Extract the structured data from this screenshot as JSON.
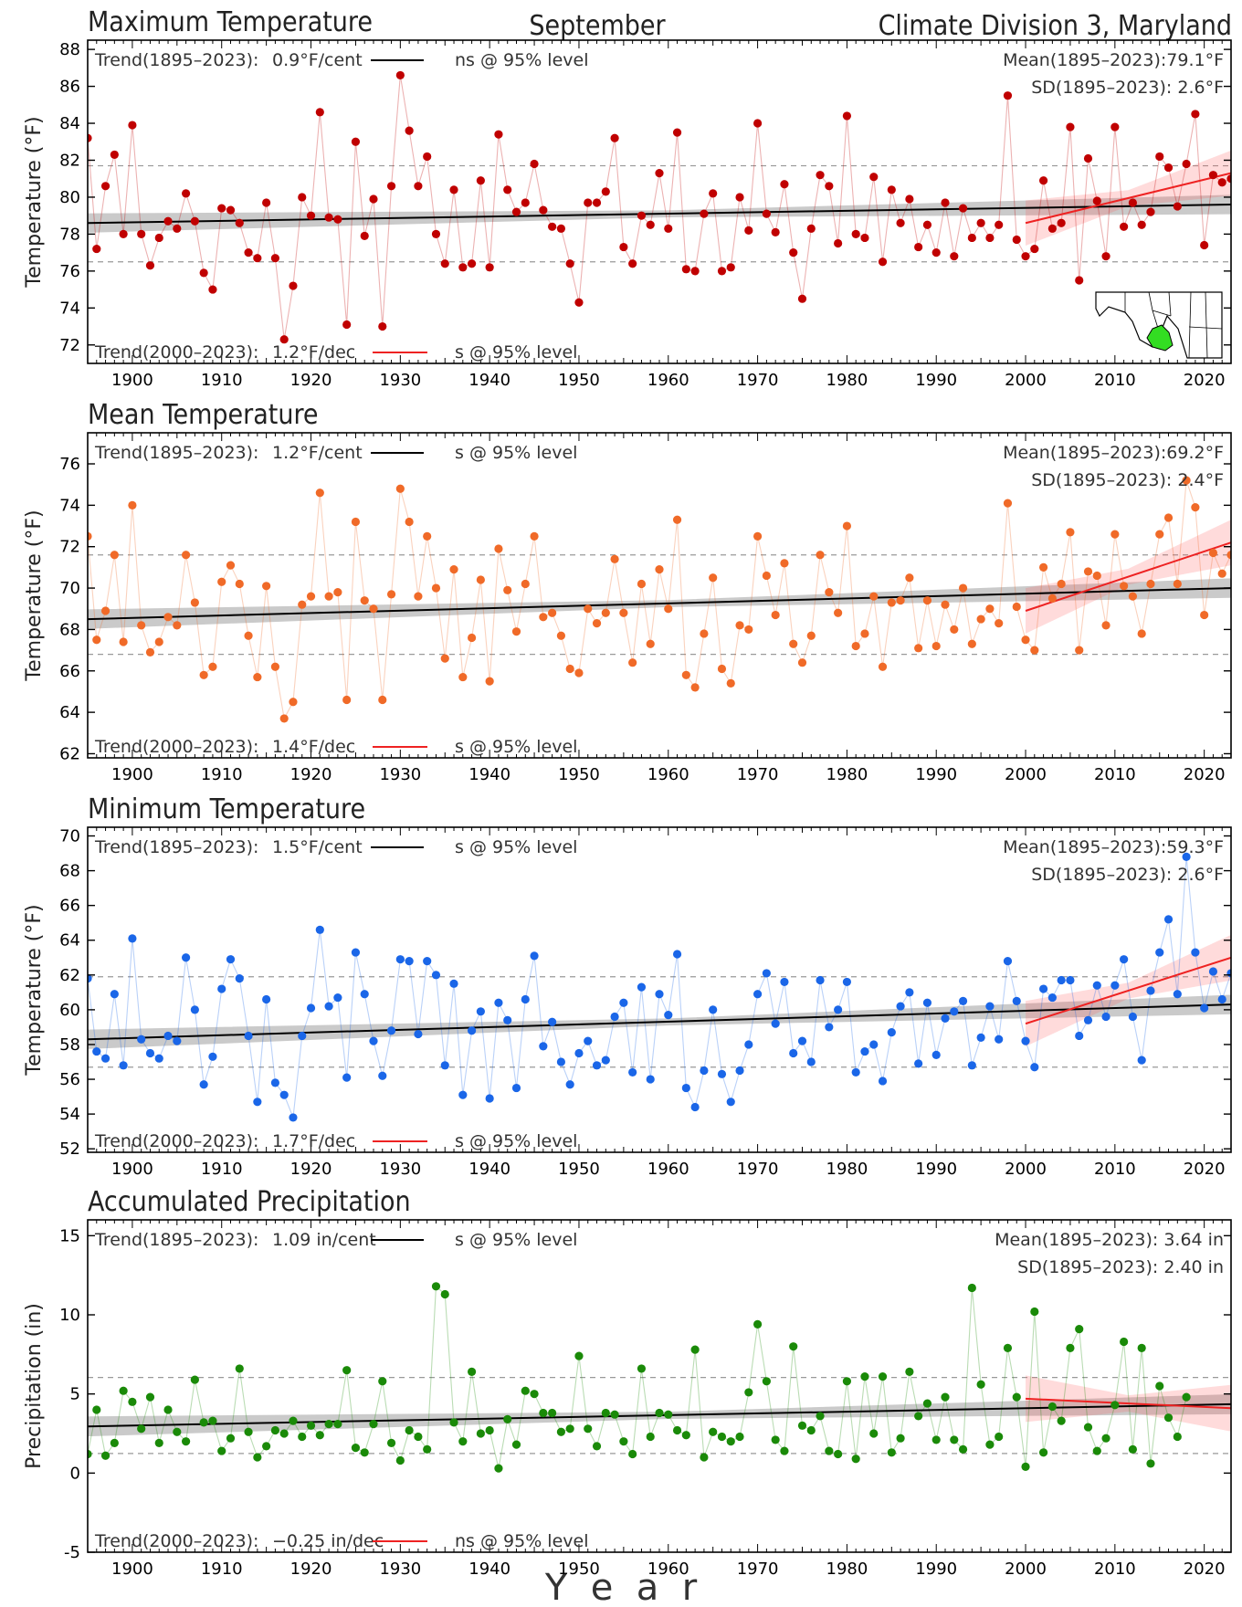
{
  "header": {
    "month": "September",
    "region": "Climate Division 3, Maryland"
  },
  "x_axis_label": "Y  e  a  r",
  "chart_data": [
    {
      "type": "scatter",
      "title": "Maximum Temperature",
      "ylabel": "Temperature (°F)",
      "color": "#c00000",
      "xlim": [
        1895,
        2023
      ],
      "ylim": [
        71,
        88.5
      ],
      "yticks": [
        72,
        74,
        76,
        78,
        80,
        82,
        84,
        86,
        88
      ],
      "xticks": [
        1900,
        1910,
        1920,
        1930,
        1940,
        1950,
        1960,
        1970,
        1980,
        1990,
        2000,
        2010,
        2020
      ],
      "trend_long": {
        "label": "Trend(1895–2023):",
        "value": "0.9°F/cent",
        "sig": "ns @ 95% level",
        "start": 78.6,
        "end": 79.6
      },
      "trend_recent": {
        "label": "Trend(2000–2023):",
        "value": "1.2°F/dec",
        "sig": "s @ 95% level",
        "start": 78.6,
        "end": 81.3
      },
      "mean_text": "Mean(1895–2023):79.1°F",
      "sd_text": "SD(1895–2023): 2.6°F",
      "mean": 79.1,
      "sd": 2.6,
      "x0": 1895,
      "values": [
        83.2,
        77.2,
        80.6,
        82.3,
        78.0,
        83.9,
        78.0,
        76.3,
        77.8,
        78.7,
        78.3,
        80.2,
        78.7,
        75.9,
        75.0,
        79.4,
        79.3,
        78.6,
        77.0,
        76.7,
        79.7,
        76.7,
        72.3,
        75.2,
        80.0,
        79.0,
        84.6,
        78.9,
        78.8,
        73.1,
        83.0,
        77.9,
        79.9,
        73.0,
        80.6,
        86.6,
        83.6,
        80.6,
        82.2,
        78.0,
        76.4,
        80.4,
        76.2,
        76.4,
        80.9,
        76.2,
        83.4,
        80.4,
        79.2,
        79.7,
        81.8,
        79.3,
        78.4,
        78.3,
        76.4,
        74.3,
        79.7,
        79.7,
        80.3,
        83.2,
        77.3,
        76.4,
        79.0,
        78.5,
        81.3,
        78.3,
        83.5,
        76.1,
        76.0,
        79.1,
        80.2,
        76.0,
        76.2,
        80.0,
        78.2,
        84.0,
        79.1,
        78.1,
        80.7,
        77.0,
        74.5,
        78.3,
        81.2,
        80.6,
        77.5,
        84.4,
        78.0,
        77.8,
        81.1,
        76.5,
        80.4,
        78.6,
        79.9,
        77.3,
        78.5,
        77.0,
        79.7,
        76.8,
        79.4,
        77.8,
        78.6,
        77.8,
        78.5,
        85.5,
        77.7,
        76.8,
        77.2,
        80.9,
        78.3,
        78.6,
        83.8,
        75.5,
        82.1,
        79.8,
        76.8,
        83.8,
        78.4,
        79.7,
        78.5,
        79.2,
        82.2,
        81.6,
        79.5,
        81.8,
        84.5,
        77.4,
        81.2,
        80.8,
        81.0
      ]
    },
    {
      "type": "scatter",
      "title": "Mean Temperature",
      "ylabel": "Temperature (°F)",
      "color": "#f06a28",
      "xlim": [
        1895,
        2023
      ],
      "ylim": [
        61.8,
        77.5
      ],
      "yticks": [
        62,
        64,
        66,
        68,
        70,
        72,
        74,
        76
      ],
      "xticks": [
        1900,
        1910,
        1920,
        1930,
        1940,
        1950,
        1960,
        1970,
        1980,
        1990,
        2000,
        2010,
        2020
      ],
      "trend_long": {
        "label": "Trend(1895–2023):",
        "value": "1.2°F/cent",
        "sig": "s @ 95% level",
        "start": 68.5,
        "end": 70.0
      },
      "trend_recent": {
        "label": "Trend(2000–2023):",
        "value": "1.4°F/dec",
        "sig": "s @ 95% level",
        "start": 68.9,
        "end": 72.2
      },
      "mean_text": "Mean(1895–2023):69.2°F",
      "sd_text": "SD(1895–2023): 2.4°F",
      "mean": 69.2,
      "sd": 2.4,
      "x0": 1895,
      "values": [
        72.5,
        67.5,
        68.9,
        71.6,
        67.4,
        74.0,
        68.2,
        66.9,
        67.4,
        68.6,
        68.2,
        71.6,
        69.3,
        65.8,
        66.2,
        70.3,
        71.1,
        70.2,
        67.7,
        65.7,
        70.1,
        66.2,
        63.7,
        64.5,
        69.2,
        69.6,
        74.6,
        69.6,
        69.8,
        64.6,
        73.2,
        69.4,
        69.0,
        64.6,
        69.7,
        74.8,
        73.2,
        69.6,
        72.5,
        70.0,
        66.6,
        70.9,
        65.7,
        67.6,
        70.4,
        65.5,
        71.9,
        69.9,
        67.9,
        70.2,
        72.5,
        68.6,
        68.8,
        67.7,
        66.1,
        65.9,
        69.0,
        68.3,
        68.8,
        71.4,
        68.8,
        66.4,
        70.2,
        67.3,
        70.9,
        69.0,
        73.3,
        65.8,
        65.2,
        67.8,
        70.5,
        66.1,
        65.4,
        68.2,
        68.0,
        72.5,
        70.6,
        68.7,
        71.2,
        67.3,
        66.4,
        67.7,
        71.6,
        69.8,
        68.8,
        73.0,
        67.2,
        67.8,
        69.6,
        66.2,
        69.3,
        69.4,
        70.5,
        67.1,
        69.4,
        67.2,
        69.2,
        68.0,
        70.0,
        67.3,
        68.5,
        69.0,
        68.3,
        74.1,
        69.1,
        67.5,
        67.0,
        71.0,
        69.5,
        70.2,
        72.7,
        67.0,
        70.8,
        70.6,
        68.2,
        72.6,
        70.1,
        69.6,
        67.8,
        70.2,
        72.6,
        73.4,
        70.2,
        75.2,
        73.9,
        68.7,
        71.7,
        70.7,
        71.6
      ]
    },
    {
      "type": "scatter",
      "title": "Minimum Temperature",
      "ylabel": "Temperature (°F)",
      "color": "#1a66e8",
      "xlim": [
        1895,
        2023
      ],
      "ylim": [
        51.8,
        70.5
      ],
      "yticks": [
        52,
        54,
        56,
        58,
        60,
        62,
        64,
        66,
        68,
        70
      ],
      "xticks": [
        1900,
        1910,
        1920,
        1930,
        1940,
        1950,
        1960,
        1970,
        1980,
        1990,
        2000,
        2010,
        2020
      ],
      "trend_long": {
        "label": "Trend(1895–2023):",
        "value": "1.5°F/cent",
        "sig": "s @ 95% level",
        "start": 58.3,
        "end": 60.3
      },
      "trend_recent": {
        "label": "Trend(2000–2023):",
        "value": "1.7°F/dec",
        "sig": "s @ 95% level",
        "start": 59.2,
        "end": 63.0
      },
      "mean_text": "Mean(1895–2023):59.3°F",
      "sd_text": "SD(1895–2023): 2.6°F",
      "mean": 59.3,
      "sd": 2.6,
      "x0": 1895,
      "values": [
        61.8,
        57.6,
        57.2,
        60.9,
        56.8,
        64.1,
        58.3,
        57.5,
        57.2,
        58.5,
        58.2,
        63.0,
        60.0,
        55.7,
        57.3,
        61.2,
        62.9,
        61.8,
        58.5,
        54.7,
        60.6,
        55.8,
        55.1,
        53.8,
        58.5,
        60.1,
        64.6,
        60.2,
        60.7,
        56.1,
        63.3,
        60.9,
        58.2,
        56.2,
        58.8,
        62.9,
        62.8,
        58.6,
        62.8,
        62.0,
        56.8,
        61.5,
        55.1,
        58.8,
        59.9,
        54.9,
        60.4,
        59.4,
        55.5,
        60.6,
        63.1,
        57.9,
        59.3,
        57.0,
        55.7,
        57.5,
        58.2,
        56.8,
        57.1,
        59.6,
        60.4,
        56.4,
        61.3,
        56.0,
        60.9,
        59.7,
        63.2,
        55.5,
        54.4,
        56.5,
        60.0,
        56.3,
        54.7,
        56.5,
        58.0,
        60.9,
        62.1,
        59.2,
        61.6,
        57.5,
        58.2,
        57.0,
        61.7,
        59.0,
        60.0,
        61.6,
        56.4,
        57.6,
        58.0,
        55.9,
        58.7,
        60.2,
        61.0,
        56.9,
        60.4,
        57.4,
        59.5,
        59.9,
        60.5,
        56.8,
        58.4,
        60.2,
        58.3,
        62.8,
        60.5,
        58.2,
        56.7,
        61.2,
        60.7,
        61.7,
        61.7,
        58.5,
        59.4,
        61.4,
        59.6,
        61.4,
        62.9,
        59.6,
        57.1,
        61.1,
        63.3,
        65.2,
        60.9,
        68.8,
        63.3,
        60.1,
        62.2,
        60.6,
        62.1
      ]
    },
    {
      "type": "scatter",
      "title": "Accumulated Precipitation",
      "ylabel": "Precipitation (in)",
      "color": "#1a8a08",
      "xlim": [
        1895,
        2023
      ],
      "ylim": [
        -5,
        16
      ],
      "yticks": [
        -5,
        0,
        5,
        10,
        15
      ],
      "xticks": [
        1900,
        1910,
        1920,
        1930,
        1940,
        1950,
        1960,
        1970,
        1980,
        1990,
        2000,
        2010,
        2020
      ],
      "trend_long": {
        "label": "Trend(1895–2023):",
        "value": "1.09 in/cent",
        "sig": "s @ 95% level",
        "start": 2.95,
        "end": 4.35
      },
      "trend_recent": {
        "label": "Trend(2000–2023):",
        "value": "−0.25 in/dec",
        "sig": "ns @ 95% level",
        "start": 4.7,
        "end": 4.1
      },
      "mean_text": "Mean(1895–2023): 3.64 in",
      "sd_text": "SD(1895–2023): 2.40 in",
      "mean": 3.64,
      "sd": 2.4,
      "x0": 1895,
      "values": [
        1.2,
        4.0,
        1.1,
        1.9,
        5.2,
        4.5,
        2.8,
        4.8,
        1.9,
        4.0,
        2.6,
        2.0,
        5.9,
        3.2,
        3.3,
        1.4,
        2.2,
        6.6,
        2.6,
        1.0,
        1.7,
        2.7,
        2.5,
        3.3,
        2.3,
        3.0,
        2.4,
        3.1,
        3.1,
        6.5,
        1.6,
        1.3,
        3.1,
        5.8,
        1.9,
        0.8,
        2.7,
        2.3,
        1.5,
        11.8,
        11.3,
        3.2,
        2.0,
        6.4,
        2.5,
        2.7,
        0.3,
        3.4,
        1.8,
        5.2,
        5.0,
        3.8,
        3.8,
        2.6,
        2.8,
        7.4,
        2.8,
        1.7,
        3.8,
        3.7,
        2.0,
        1.2,
        6.6,
        2.3,
        3.8,
        3.7,
        2.7,
        2.4,
        7.8,
        1.0,
        2.6,
        2.3,
        2.0,
        2.3,
        5.1,
        9.4,
        5.8,
        2.1,
        1.4,
        8.0,
        3.0,
        2.7,
        3.6,
        1.4,
        1.2,
        5.8,
        0.9,
        6.1,
        2.5,
        6.1,
        1.3,
        2.2,
        6.4,
        3.6,
        4.4,
        2.1,
        4.8,
        2.1,
        1.5,
        11.7,
        5.6,
        1.8,
        2.3,
        7.9,
        4.8,
        0.4,
        10.2,
        1.3,
        4.2,
        3.3,
        7.9,
        9.1,
        2.9,
        1.4,
        2.2,
        4.3,
        8.3,
        1.5,
        7.9,
        0.6,
        5.5,
        3.5,
        2.3,
        4.8
      ]
    }
  ]
}
